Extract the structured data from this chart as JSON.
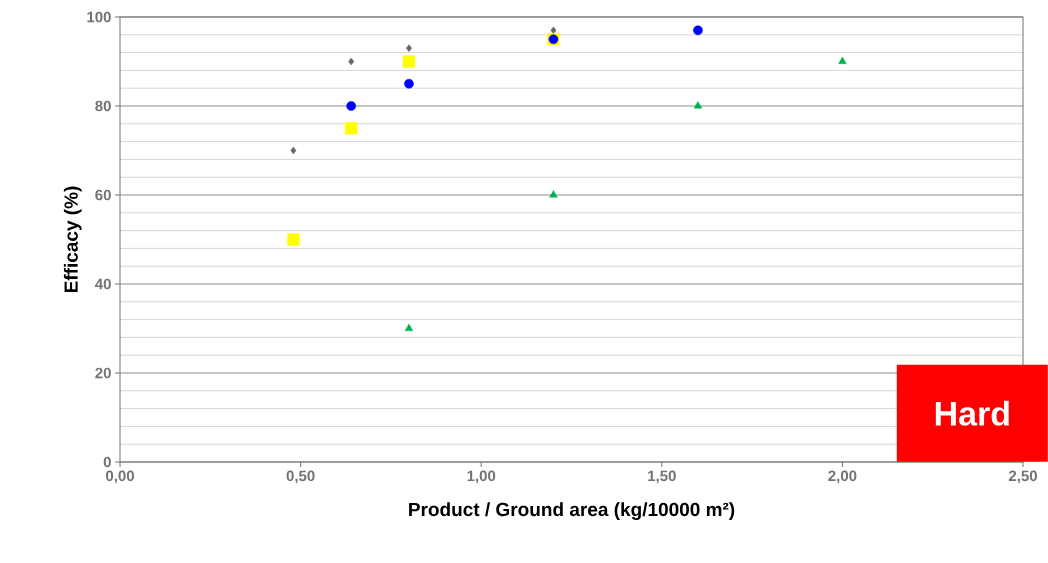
{
  "chart_data": {
    "type": "scatter",
    "xlabel": "Product / Ground area  (kg/10000 m²)",
    "ylabel": "Efficacy (%)",
    "xlim": [
      0,
      2.5
    ],
    "ylim": [
      0,
      100
    ],
    "xticks": [
      {
        "value": 0,
        "label": "0,00"
      },
      {
        "value": 0.5,
        "label": "0,50"
      },
      {
        "value": 1,
        "label": "1,00"
      },
      {
        "value": 1.5,
        "label": "1,50"
      },
      {
        "value": 2,
        "label": "2,00"
      },
      {
        "value": 2.5,
        "label": "2,50"
      }
    ],
    "yticks": [
      0,
      20,
      40,
      60,
      80,
      100
    ],
    "grid": "y",
    "series": [
      {
        "color": "#666666",
        "marker": "diamond",
        "x": [
          0.48,
          0.64,
          0.8,
          1.2
        ],
        "values": [
          70,
          90,
          93,
          97
        ]
      },
      {
        "color": "#ffff00",
        "marker": "square",
        "x": [
          0.48,
          0.64,
          0.8,
          1.2
        ],
        "values": [
          50,
          75,
          90,
          95
        ]
      },
      {
        "color": "#0000ff",
        "marker": "circle",
        "x": [
          0.64,
          0.8,
          1.2,
          1.6
        ],
        "values": [
          80,
          85,
          95,
          97
        ]
      },
      {
        "color": "#00b050",
        "marker": "triangle",
        "x": [
          0.8,
          1.2,
          1.6,
          2.0
        ],
        "values": [
          30,
          60,
          80,
          90
        ]
      }
    ],
    "annotations": [
      "Hard"
    ]
  }
}
